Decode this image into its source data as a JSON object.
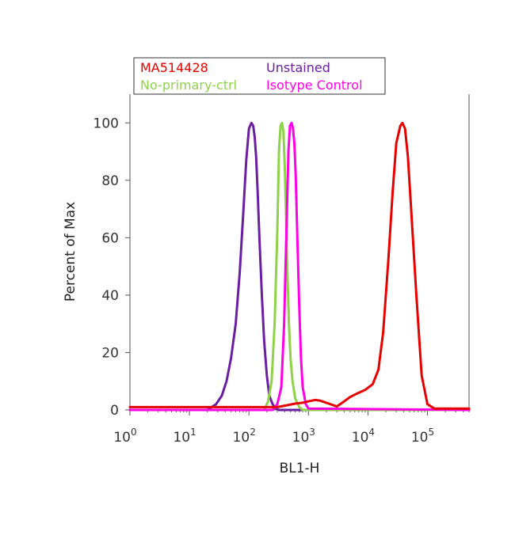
{
  "chart_data": {
    "type": "line",
    "title": "",
    "xlabel": "BL1-H",
    "ylabel": "Percent of Max",
    "x_scale": "log",
    "xlim": [
      1,
      500000
    ],
    "ylim": [
      0,
      110
    ],
    "x_ticks": [
      {
        "value": 1,
        "base": "10",
        "exp": "0"
      },
      {
        "value": 10,
        "base": "10",
        "exp": "1"
      },
      {
        "value": 100,
        "base": "10",
        "exp": "2"
      },
      {
        "value": 1000,
        "base": "10",
        "exp": "3"
      },
      {
        "value": 10000,
        "base": "10",
        "exp": "4"
      },
      {
        "value": 100000,
        "base": "10",
        "exp": "5"
      }
    ],
    "y_ticks": [
      0,
      20,
      40,
      60,
      80,
      100
    ],
    "grid": false,
    "legend_position": "top",
    "series": [
      {
        "name": "MA514428",
        "color": "#e60000",
        "x": [
          1,
          100,
          200,
          300,
          400,
          600,
          800,
          1000,
          1300,
          1600,
          2000,
          2500,
          3000,
          4000,
          5000,
          7000,
          9000,
          12000,
          15000,
          18000,
          22000,
          26000,
          30000,
          35000,
          38000,
          42000,
          47000,
          55000,
          65000,
          80000,
          100000,
          130000,
          200000,
          500000
        ],
        "y": [
          1,
          1,
          1,
          1,
          1.5,
          2.2,
          2.5,
          3,
          3.5,
          3.2,
          2.5,
          1.8,
          1.2,
          3,
          4.5,
          6,
          7,
          9,
          14,
          27,
          52,
          76,
          93,
          99,
          100,
          98,
          88,
          65,
          40,
          12,
          2,
          0.5,
          0.5,
          0.5
        ]
      },
      {
        "name": "Unstained",
        "color": "#6a1fa2",
        "x": [
          1,
          20,
          28,
          35,
          42,
          50,
          60,
          70,
          80,
          90,
          100,
          110,
          118,
          125,
          132,
          140,
          150,
          165,
          180,
          200,
          220,
          250,
          280,
          320,
          500000
        ],
        "y": [
          0,
          0,
          2,
          5,
          10,
          18,
          30,
          48,
          68,
          87,
          98,
          100,
          99,
          95,
          88,
          76,
          60,
          40,
          24,
          12,
          5,
          2,
          0.5,
          0,
          0
        ]
      },
      {
        "name": "No-primary-ctrl",
        "color": "#8fd24a",
        "x": [
          1,
          180,
          210,
          240,
          270,
          300,
          320,
          340,
          360,
          380,
          400,
          420,
          440,
          470,
          500,
          540,
          600,
          700,
          800,
          500000
        ],
        "y": [
          0,
          0,
          3,
          10,
          30,
          62,
          90,
          99,
          100,
          97,
          85,
          68,
          50,
          30,
          18,
          10,
          4,
          1,
          0,
          0
        ]
      },
      {
        "name": "Isotype Control",
        "color": "#ff00e6",
        "x": [
          1,
          250,
          300,
          350,
          390,
          430,
          460,
          490,
          520,
          550,
          580,
          610,
          650,
          700,
          750,
          800,
          900,
          1000,
          500000
        ],
        "y": [
          0,
          0,
          2,
          8,
          30,
          65,
          90,
          99,
          100,
          98,
          93,
          82,
          60,
          36,
          18,
          8,
          2,
          0.5,
          0
        ]
      }
    ]
  }
}
